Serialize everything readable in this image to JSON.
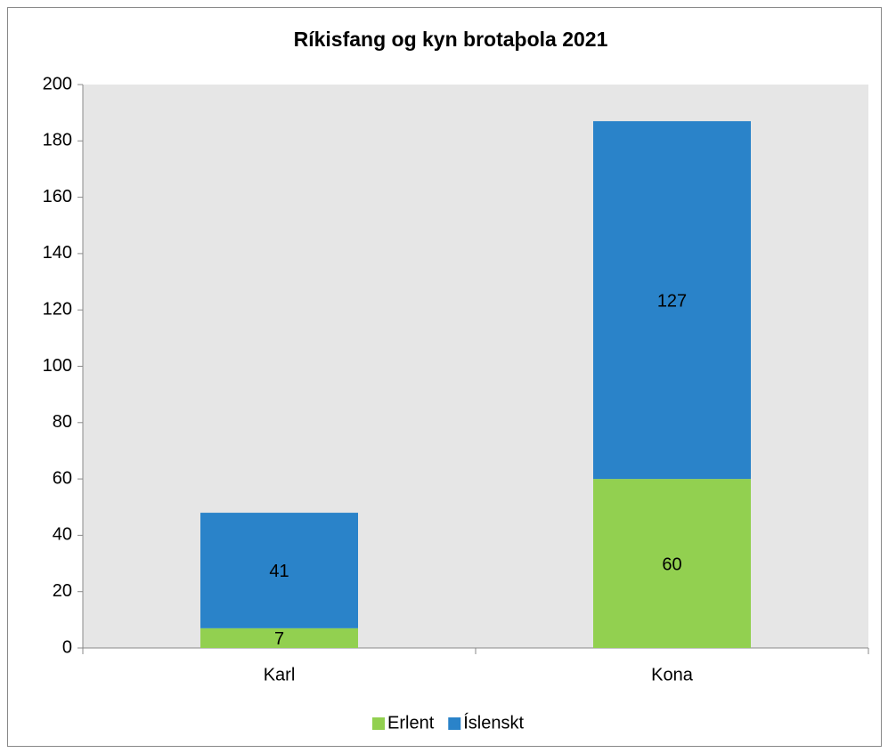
{
  "chart_data": {
    "type": "stacked_bar",
    "title": "Ríkisfang og kyn brotaþola 2021",
    "categories": [
      "Karl",
      "Kona"
    ],
    "series": [
      {
        "name": "Erlent",
        "color": "#92d050",
        "values": [
          7,
          60
        ]
      },
      {
        "name": "Íslenskt",
        "color": "#2a83c9",
        "values": [
          41,
          127
        ]
      }
    ],
    "ylim": [
      0,
      200
    ],
    "yticks": [
      0,
      20,
      40,
      60,
      80,
      100,
      120,
      140,
      160,
      180,
      200
    ],
    "legend": "bottom",
    "data_labels": true
  }
}
